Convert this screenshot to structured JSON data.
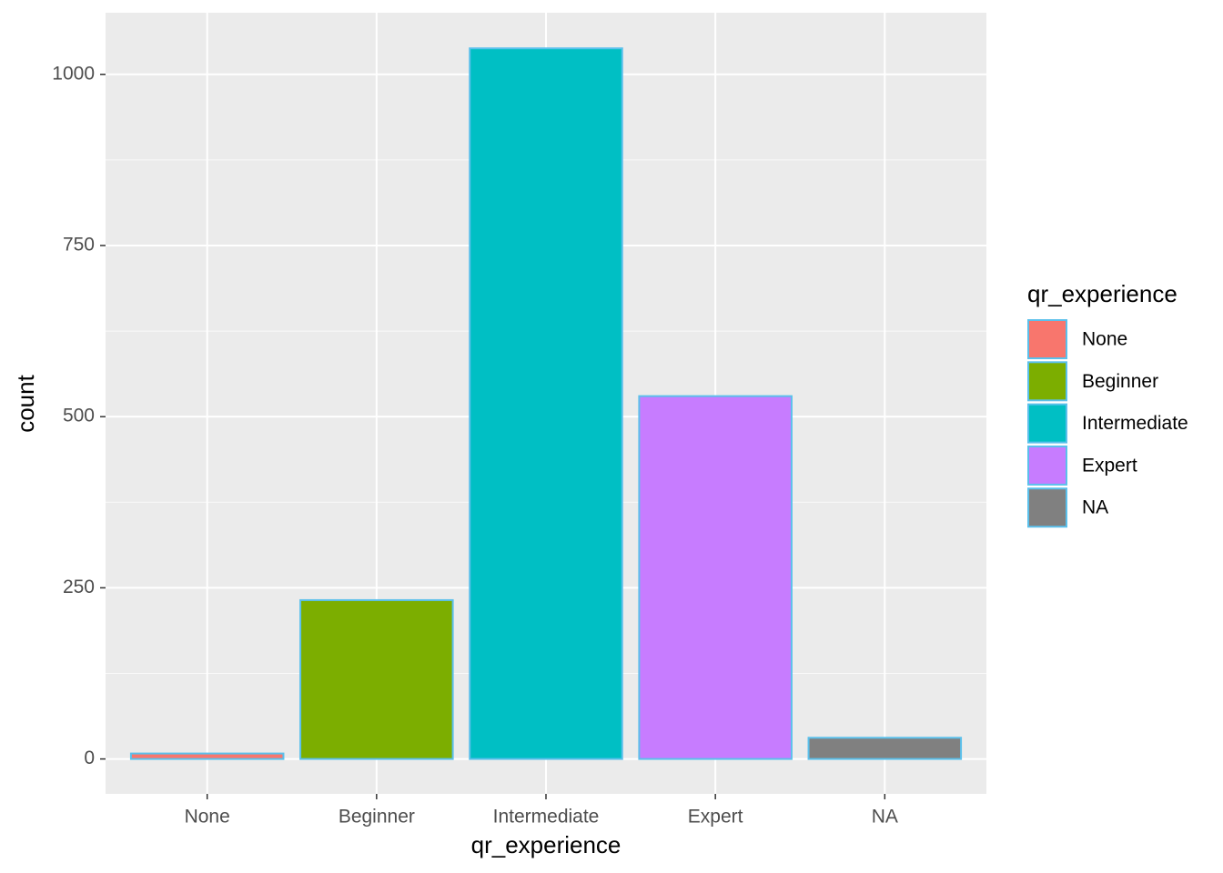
{
  "chart_data": {
    "type": "bar",
    "x_label": "qr_experience",
    "y_label": "count",
    "legend_title": "qr_experience",
    "categories": [
      "None",
      "Beginner",
      "Intermediate",
      "Expert",
      "NA"
    ],
    "values": [
      8,
      232,
      1038,
      530,
      31
    ],
    "colors": [
      "#F8766D",
      "#7CAE00",
      "#00BFC4",
      "#C77CFF",
      "#808080"
    ],
    "outline_color": "#5BC0EB",
    "ylim": [
      -51,
      1090
    ],
    "yticks": [
      0,
      250,
      500,
      750,
      1000
    ],
    "minor_yticks": [
      125,
      375,
      625,
      875
    ],
    "grid": true
  }
}
